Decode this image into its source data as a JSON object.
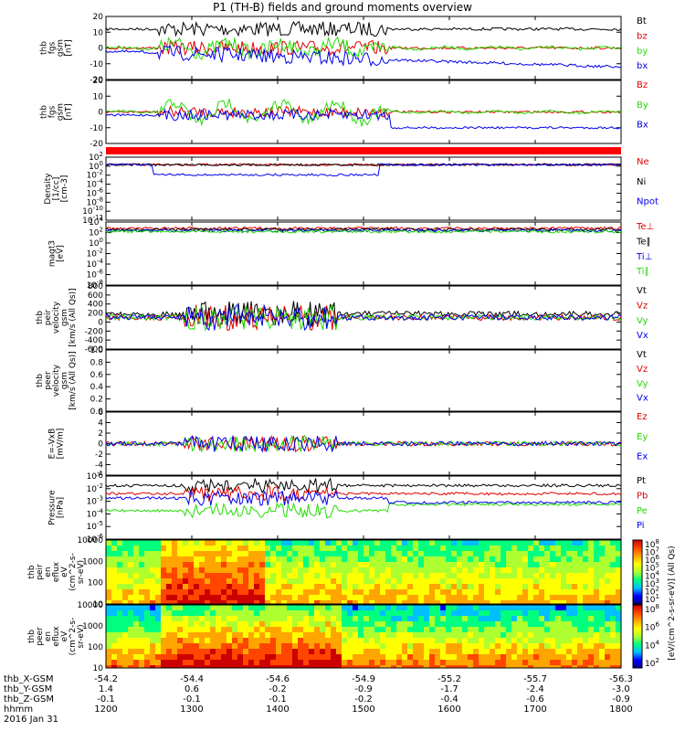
{
  "title": "P1 (TH-B) fields and ground moments overview",
  "date_label": "2016 Jan 31",
  "colors": {
    "black": "#000000",
    "red": "#e00000",
    "green": "#22dd00",
    "blue": "#0000ee"
  },
  "chart_data": [
    {
      "type": "line",
      "ylabel": [
        "thb",
        "fgs",
        "gsm",
        "[nT]"
      ],
      "ylim": [
        -20,
        20
      ],
      "ticks": [
        "-20",
        "-10",
        "0",
        "10",
        "20"
      ],
      "legend": [
        {
          "name": "Bt",
          "color": "black"
        },
        {
          "name": "bz",
          "color": "red"
        },
        {
          "name": "by",
          "color": "green"
        },
        {
          "name": "bx",
          "color": "blue"
        }
      ]
    },
    {
      "type": "line",
      "ylabel": [
        "thb",
        "fgs",
        "gsm",
        "[nT]"
      ],
      "ylim": [
        -25,
        25
      ],
      "ticks": [
        "-20",
        "-10",
        "0",
        "10",
        "20"
      ],
      "legend": [
        {
          "name": "Bz",
          "color": "red"
        },
        {
          "name": "By",
          "color": "green"
        },
        {
          "name": "Bx",
          "color": "blue"
        }
      ]
    },
    {
      "type": "line",
      "ylabel": [
        "Density",
        "[1/cc]",
        "[cm-3]"
      ],
      "scale": "log",
      "ticks": [
        "10^2",
        "10^0",
        "10^-2",
        "10^-4",
        "10^-6",
        "10^-8",
        "10^-10",
        "10^-12"
      ],
      "legend": [
        {
          "name": "Ne",
          "color": "red"
        },
        {
          "name": "Ni",
          "color": "black"
        },
        {
          "name": "Npot",
          "color": "blue"
        }
      ]
    },
    {
      "type": "line",
      "ylabel": [
        "magt3",
        "[eV]"
      ],
      "scale": "log",
      "ticks": [
        "10^4",
        "10^2",
        "10^0",
        "10^-2",
        "10^-4",
        "10^-6",
        "10^-8"
      ],
      "legend": [
        {
          "name": "Te⊥",
          "color": "red"
        },
        {
          "name": "Te∥",
          "color": "black"
        },
        {
          "name": "Ti⊥",
          "color": "blue"
        },
        {
          "name": "Ti∥",
          "color": "green"
        }
      ]
    },
    {
      "type": "line",
      "ylabel": [
        "thb",
        "peir",
        "velocity",
        "gsm",
        "[km/s (All Qs)]"
      ],
      "ylim": [
        -600,
        800
      ],
      "ticks": [
        "-600",
        "-400",
        "-200",
        "0",
        "200",
        "400",
        "600",
        "800"
      ],
      "legend": [
        {
          "name": "Vt",
          "color": "black"
        },
        {
          "name": "Vz",
          "color": "red"
        },
        {
          "name": "Vy",
          "color": "green"
        },
        {
          "name": "Vx",
          "color": "blue"
        }
      ]
    },
    {
      "type": "line",
      "ylabel": [
        "thb",
        "peer",
        "velocity",
        "gsm",
        "[km/s (All Qs)]"
      ],
      "ylim": [
        0.0,
        1.0
      ],
      "ticks": [
        "0.0",
        "0.2",
        "0.4",
        "0.6",
        "0.8",
        "1.0"
      ],
      "legend": [
        {
          "name": "Vt",
          "color": "black"
        },
        {
          "name": "Vz",
          "color": "red"
        },
        {
          "name": "Vy",
          "color": "green"
        },
        {
          "name": "Vx",
          "color": "blue"
        }
      ]
    },
    {
      "type": "line",
      "ylabel": [
        "E=-VxB",
        "[mV/m]"
      ],
      "ylim": [
        -6,
        6
      ],
      "ticks": [
        "-6",
        "-4",
        "-2",
        "0",
        "2",
        "4",
        "6"
      ],
      "legend": [
        {
          "name": "Ez",
          "color": "red"
        },
        {
          "name": "Ey",
          "color": "green"
        },
        {
          "name": "Ex",
          "color": "blue"
        }
      ]
    },
    {
      "type": "line",
      "ylabel": [
        "Pressure",
        "[nPa]"
      ],
      "scale": "log",
      "ticks": [
        "10^-1",
        "10^-2",
        "10^-3",
        "10^-4",
        "10^-5",
        "10^-6"
      ],
      "legend": [
        {
          "name": "Pt",
          "color": "black"
        },
        {
          "name": "Pb",
          "color": "red"
        },
        {
          "name": "Pe",
          "color": "green"
        },
        {
          "name": "Pi",
          "color": "blue"
        }
      ]
    },
    {
      "type": "heatmap",
      "ylabel": [
        "thb",
        "peir",
        "en",
        "eflux",
        "eV",
        "(cm^2-s-",
        "sr-eV)"
      ],
      "scale": "log",
      "ticks": [
        "10000",
        "1000",
        "100",
        "10"
      ],
      "colorbar": {
        "ticks": [
          "10^8",
          "10^7",
          "10^6",
          "10^5",
          "10^4",
          "10^3",
          "10^2",
          "10^1"
        ],
        "label": "[eV/(cm^2-s-sr-eV)] (All Qs)"
      }
    },
    {
      "type": "heatmap",
      "ylabel": [
        "thb",
        "peer",
        "en",
        "eflux",
        "eV",
        "(cm^2-s-",
        "sr-eV)"
      ],
      "scale": "log",
      "ticks": [
        "10000",
        "1000",
        "100",
        "10"
      ],
      "colorbar": {
        "ticks": [
          "10^8",
          "10^6",
          "10^4",
          "10^2"
        ],
        "label": "[eV/(cm^2-s-sr-eV)]"
      }
    }
  ],
  "x_axis": {
    "rows": [
      {
        "label": "thb_X-GSM",
        "values": [
          "-54.2",
          "-54.4",
          "-54.6",
          "-54.9",
          "-55.2",
          "-55.7",
          "-56.3"
        ]
      },
      {
        "label": "thb_Y-GSM",
        "values": [
          "1.4",
          "0.6",
          "-0.2",
          "-0.9",
          "-1.7",
          "-2.4",
          "-3.0"
        ]
      },
      {
        "label": "thb_Z-GSM",
        "values": [
          "-0.1",
          "-0.1",
          "-0.1",
          "-0.2",
          "-0.4",
          "-0.6",
          "-0.9"
        ]
      },
      {
        "label": "hhmm",
        "values": [
          "1200",
          "1300",
          "1400",
          "1500",
          "1600",
          "1700",
          "1800"
        ]
      }
    ]
  }
}
